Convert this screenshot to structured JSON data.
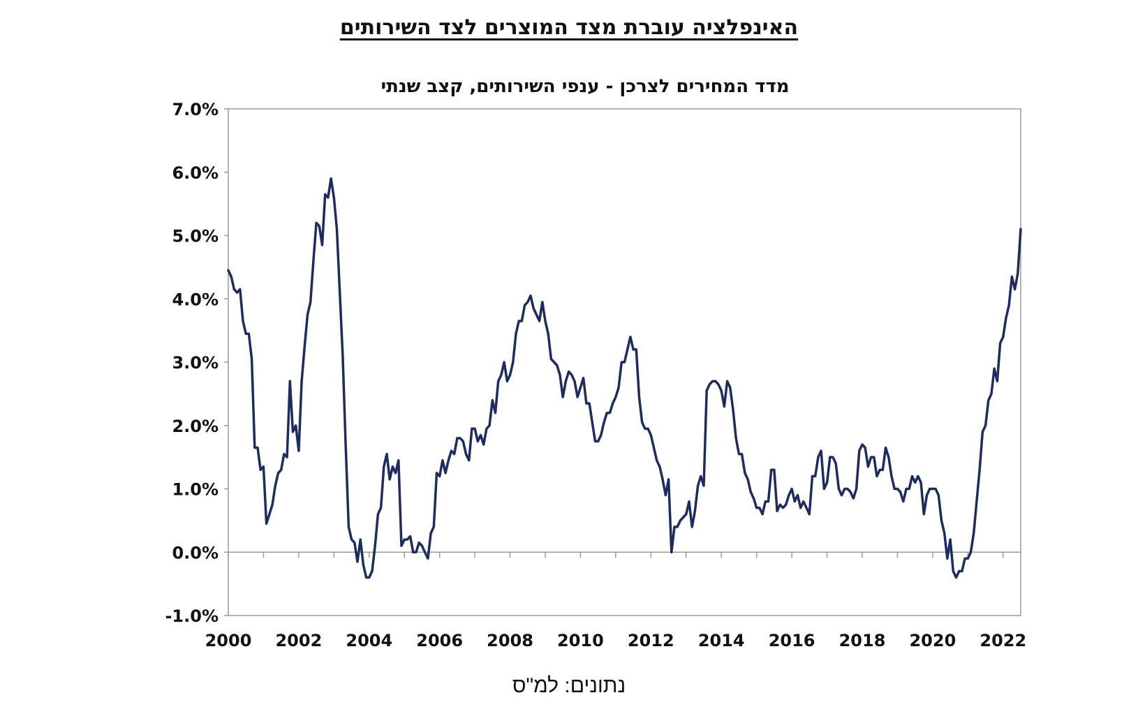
{
  "page": {
    "title": "האינפלציה עוברת מצד המוצרים לצד השירותים",
    "source": "נתונים: למ\"ס"
  },
  "chart_data": {
    "type": "line",
    "title": "מדד המחירים לצרכן - ענפי השירותים, קצב שנתי",
    "xlabel": "",
    "ylabel": "",
    "x_ticks": [
      "2000",
      "2002",
      "2004",
      "2006",
      "2008",
      "2010",
      "2012",
      "2014",
      "2016",
      "2018",
      "2020",
      "2022"
    ],
    "y_ticks": [
      "-1.0%",
      "0.0%",
      "1.0%",
      "2.0%",
      "3.0%",
      "4.0%",
      "5.0%",
      "6.0%",
      "7.0%"
    ],
    "xlim": [
      "2000-01",
      "2022-07"
    ],
    "ylim": [
      -1.0,
      7.0
    ],
    "grid": false,
    "line_color": "#1c2c5e",
    "series": [
      {
        "values": [
          [
            "2000-01",
            4.45
          ],
          [
            "2000-02",
            4.35
          ],
          [
            "2000-03",
            4.15
          ],
          [
            "2000-04",
            4.1
          ],
          [
            "2000-05",
            4.15
          ],
          [
            "2000-06",
            3.65
          ],
          [
            "2000-07",
            3.45
          ],
          [
            "2000-08",
            3.45
          ],
          [
            "2000-09",
            3.05
          ],
          [
            "2000-10",
            1.65
          ],
          [
            "2000-11",
            1.65
          ],
          [
            "2000-12",
            1.3
          ],
          [
            "2001-01",
            1.35
          ],
          [
            "2001-02",
            0.45
          ],
          [
            "2001-03",
            0.6
          ],
          [
            "2001-04",
            0.75
          ],
          [
            "2001-05",
            1.05
          ],
          [
            "2001-06",
            1.25
          ],
          [
            "2001-07",
            1.3
          ],
          [
            "2001-08",
            1.55
          ],
          [
            "2001-09",
            1.5
          ],
          [
            "2001-10",
            2.7
          ],
          [
            "2001-11",
            1.9
          ],
          [
            "2001-12",
            2.0
          ],
          [
            "2002-01",
            1.6
          ],
          [
            "2002-02",
            2.7
          ],
          [
            "2002-03",
            3.25
          ],
          [
            "2002-04",
            3.75
          ],
          [
            "2002-05",
            3.95
          ],
          [
            "2002-06",
            4.6
          ],
          [
            "2002-07",
            5.2
          ],
          [
            "2002-08",
            5.15
          ],
          [
            "2002-09",
            4.85
          ],
          [
            "2002-10",
            5.65
          ],
          [
            "2002-11",
            5.6
          ],
          [
            "2002-12",
            5.9
          ],
          [
            "2003-01",
            5.6
          ],
          [
            "2003-02",
            5.1
          ],
          [
            "2003-03",
            4.1
          ],
          [
            "2003-04",
            3.1
          ],
          [
            "2003-05",
            1.7
          ],
          [
            "2003-06",
            0.4
          ],
          [
            "2003-07",
            0.2
          ],
          [
            "2003-08",
            0.15
          ],
          [
            "2003-09",
            -0.15
          ],
          [
            "2003-10",
            0.2
          ],
          [
            "2003-11",
            -0.2
          ],
          [
            "2003-12",
            -0.4
          ],
          [
            "2004-01",
            -0.4
          ],
          [
            "2004-02",
            -0.3
          ],
          [
            "2004-03",
            0.1
          ],
          [
            "2004-04",
            0.6
          ],
          [
            "2004-05",
            0.7
          ],
          [
            "2004-06",
            1.35
          ],
          [
            "2004-07",
            1.55
          ],
          [
            "2004-08",
            1.15
          ],
          [
            "2004-09",
            1.35
          ],
          [
            "2004-10",
            1.25
          ],
          [
            "2004-11",
            1.45
          ],
          [
            "2004-12",
            0.1
          ],
          [
            "2005-01",
            0.2
          ],
          [
            "2005-02",
            0.2
          ],
          [
            "2005-03",
            0.25
          ],
          [
            "2005-04",
            0.0
          ],
          [
            "2005-05",
            0.0
          ],
          [
            "2005-06",
            0.15
          ],
          [
            "2005-07",
            0.1
          ],
          [
            "2005-08",
            0.0
          ],
          [
            "2005-09",
            -0.1
          ],
          [
            "2005-10",
            0.3
          ],
          [
            "2005-11",
            0.4
          ],
          [
            "2005-12",
            1.25
          ],
          [
            "2006-01",
            1.2
          ],
          [
            "2006-02",
            1.45
          ],
          [
            "2006-03",
            1.25
          ],
          [
            "2006-04",
            1.45
          ],
          [
            "2006-05",
            1.6
          ],
          [
            "2006-06",
            1.55
          ],
          [
            "2006-07",
            1.8
          ],
          [
            "2006-08",
            1.8
          ],
          [
            "2006-09",
            1.75
          ],
          [
            "2006-10",
            1.55
          ],
          [
            "2006-11",
            1.45
          ],
          [
            "2006-12",
            1.95
          ],
          [
            "2007-01",
            1.95
          ],
          [
            "2007-02",
            1.75
          ],
          [
            "2007-03",
            1.85
          ],
          [
            "2007-04",
            1.7
          ],
          [
            "2007-05",
            1.95
          ],
          [
            "2007-06",
            2.0
          ],
          [
            "2007-07",
            2.4
          ],
          [
            "2007-08",
            2.2
          ],
          [
            "2007-09",
            2.7
          ],
          [
            "2007-10",
            2.8
          ],
          [
            "2007-11",
            3.0
          ],
          [
            "2007-12",
            2.7
          ],
          [
            "2008-01",
            2.8
          ],
          [
            "2008-02",
            3.0
          ],
          [
            "2008-03",
            3.45
          ],
          [
            "2008-04",
            3.65
          ],
          [
            "2008-05",
            3.65
          ],
          [
            "2008-06",
            3.9
          ],
          [
            "2008-07",
            3.95
          ],
          [
            "2008-08",
            4.05
          ],
          [
            "2008-09",
            3.85
          ],
          [
            "2008-10",
            3.75
          ],
          [
            "2008-11",
            3.65
          ],
          [
            "2008-12",
            3.95
          ],
          [
            "2009-01",
            3.65
          ],
          [
            "2009-02",
            3.45
          ],
          [
            "2009-03",
            3.05
          ],
          [
            "2009-04",
            3.0
          ],
          [
            "2009-05",
            2.95
          ],
          [
            "2009-06",
            2.8
          ],
          [
            "2009-07",
            2.45
          ],
          [
            "2009-08",
            2.7
          ],
          [
            "2009-09",
            2.85
          ],
          [
            "2009-10",
            2.8
          ],
          [
            "2009-11",
            2.7
          ],
          [
            "2009-12",
            2.45
          ],
          [
            "2010-01",
            2.6
          ],
          [
            "2010-02",
            2.75
          ],
          [
            "2010-03",
            2.35
          ],
          [
            "2010-04",
            2.35
          ],
          [
            "2010-05",
            2.05
          ],
          [
            "2010-06",
            1.75
          ],
          [
            "2010-07",
            1.75
          ],
          [
            "2010-08",
            1.85
          ],
          [
            "2010-09",
            2.05
          ],
          [
            "2010-10",
            2.2
          ],
          [
            "2010-11",
            2.2
          ],
          [
            "2010-12",
            2.35
          ],
          [
            "2011-01",
            2.45
          ],
          [
            "2011-02",
            2.6
          ],
          [
            "2011-03",
            3.0
          ],
          [
            "2011-04",
            3.0
          ],
          [
            "2011-05",
            3.2
          ],
          [
            "2011-06",
            3.4
          ],
          [
            "2011-07",
            3.2
          ],
          [
            "2011-08",
            3.2
          ],
          [
            "2011-09",
            2.45
          ],
          [
            "2011-10",
            2.05
          ],
          [
            "2011-11",
            1.95
          ],
          [
            "2011-12",
            1.95
          ],
          [
            "2012-01",
            1.85
          ],
          [
            "2012-02",
            1.65
          ],
          [
            "2012-03",
            1.45
          ],
          [
            "2012-04",
            1.35
          ],
          [
            "2012-05",
            1.15
          ],
          [
            "2012-06",
            0.9
          ],
          [
            "2012-07",
            1.15
          ],
          [
            "2012-08",
            0.0
          ],
          [
            "2012-09",
            0.4
          ],
          [
            "2012-10",
            0.4
          ],
          [
            "2012-11",
            0.5
          ],
          [
            "2012-12",
            0.55
          ],
          [
            "2013-01",
            0.6
          ],
          [
            "2013-02",
            0.8
          ],
          [
            "2013-03",
            0.4
          ],
          [
            "2013-04",
            0.65
          ],
          [
            "2013-05",
            1.05
          ],
          [
            "2013-06",
            1.2
          ],
          [
            "2013-07",
            1.05
          ],
          [
            "2013-08",
            2.55
          ],
          [
            "2013-09",
            2.65
          ],
          [
            "2013-10",
            2.7
          ],
          [
            "2013-11",
            2.7
          ],
          [
            "2013-12",
            2.65
          ],
          [
            "2014-01",
            2.55
          ],
          [
            "2014-02",
            2.3
          ],
          [
            "2014-03",
            2.7
          ],
          [
            "2014-04",
            2.6
          ],
          [
            "2014-05",
            2.25
          ],
          [
            "2014-06",
            1.8
          ],
          [
            "2014-07",
            1.55
          ],
          [
            "2014-08",
            1.55
          ],
          [
            "2014-09",
            1.25
          ],
          [
            "2014-10",
            1.15
          ],
          [
            "2014-11",
            0.95
          ],
          [
            "2014-12",
            0.85
          ],
          [
            "2015-01",
            0.7
          ],
          [
            "2015-02",
            0.7
          ],
          [
            "2015-03",
            0.6
          ],
          [
            "2015-04",
            0.8
          ],
          [
            "2015-05",
            0.8
          ],
          [
            "2015-06",
            1.3
          ],
          [
            "2015-07",
            1.3
          ],
          [
            "2015-08",
            0.65
          ],
          [
            "2015-09",
            0.75
          ],
          [
            "2015-10",
            0.7
          ],
          [
            "2015-11",
            0.75
          ],
          [
            "2015-12",
            0.9
          ],
          [
            "2016-01",
            1.0
          ],
          [
            "2016-02",
            0.8
          ],
          [
            "2016-03",
            0.9
          ],
          [
            "2016-04",
            0.7
          ],
          [
            "2016-05",
            0.8
          ],
          [
            "2016-06",
            0.7
          ],
          [
            "2016-07",
            0.6
          ],
          [
            "2016-08",
            1.2
          ],
          [
            "2016-09",
            1.2
          ],
          [
            "2016-10",
            1.5
          ],
          [
            "2016-11",
            1.6
          ],
          [
            "2016-12",
            1.0
          ],
          [
            "2017-01",
            1.1
          ],
          [
            "2017-02",
            1.5
          ],
          [
            "2017-03",
            1.5
          ],
          [
            "2017-04",
            1.4
          ],
          [
            "2017-05",
            1.0
          ],
          [
            "2017-06",
            0.9
          ],
          [
            "2017-07",
            1.0
          ],
          [
            "2017-08",
            1.0
          ],
          [
            "2017-09",
            0.95
          ],
          [
            "2017-10",
            0.85
          ],
          [
            "2017-11",
            1.0
          ],
          [
            "2017-12",
            1.6
          ],
          [
            "2018-01",
            1.7
          ],
          [
            "2018-02",
            1.65
          ],
          [
            "2018-03",
            1.35
          ],
          [
            "2018-04",
            1.5
          ],
          [
            "2018-05",
            1.5
          ],
          [
            "2018-06",
            1.2
          ],
          [
            "2018-07",
            1.3
          ],
          [
            "2018-08",
            1.3
          ],
          [
            "2018-09",
            1.65
          ],
          [
            "2018-10",
            1.5
          ],
          [
            "2018-11",
            1.2
          ],
          [
            "2018-12",
            1.0
          ],
          [
            "2019-01",
            1.0
          ],
          [
            "2019-02",
            0.95
          ],
          [
            "2019-03",
            0.8
          ],
          [
            "2019-04",
            1.0
          ],
          [
            "2019-05",
            1.0
          ],
          [
            "2019-06",
            1.2
          ],
          [
            "2019-07",
            1.1
          ],
          [
            "2019-08",
            1.2
          ],
          [
            "2019-09",
            1.1
          ],
          [
            "2019-10",
            0.6
          ],
          [
            "2019-11",
            0.9
          ],
          [
            "2019-12",
            1.0
          ],
          [
            "2020-01",
            1.0
          ],
          [
            "2020-02",
            1.0
          ],
          [
            "2020-03",
            0.9
          ],
          [
            "2020-04",
            0.5
          ],
          [
            "2020-05",
            0.3
          ],
          [
            "2020-06",
            -0.1
          ],
          [
            "2020-07",
            0.2
          ],
          [
            "2020-08",
            -0.3
          ],
          [
            "2020-09",
            -0.4
          ],
          [
            "2020-10",
            -0.3
          ],
          [
            "2020-11",
            -0.3
          ],
          [
            "2020-12",
            -0.1
          ],
          [
            "2021-01",
            -0.1
          ],
          [
            "2021-02",
            0.0
          ],
          [
            "2021-03",
            0.3
          ],
          [
            "2021-04",
            0.8
          ],
          [
            "2021-05",
            1.3
          ],
          [
            "2021-06",
            1.9
          ],
          [
            "2021-07",
            2.0
          ],
          [
            "2021-08",
            2.4
          ],
          [
            "2021-09",
            2.5
          ],
          [
            "2021-10",
            2.9
          ],
          [
            "2021-11",
            2.7
          ],
          [
            "2021-12",
            3.3
          ],
          [
            "2022-01",
            3.4
          ],
          [
            "2022-02",
            3.7
          ],
          [
            "2022-03",
            3.9
          ],
          [
            "2022-04",
            4.35
          ],
          [
            "2022-05",
            4.15
          ],
          [
            "2022-06",
            4.4
          ],
          [
            "2022-07",
            5.1
          ]
        ]
      }
    ]
  }
}
